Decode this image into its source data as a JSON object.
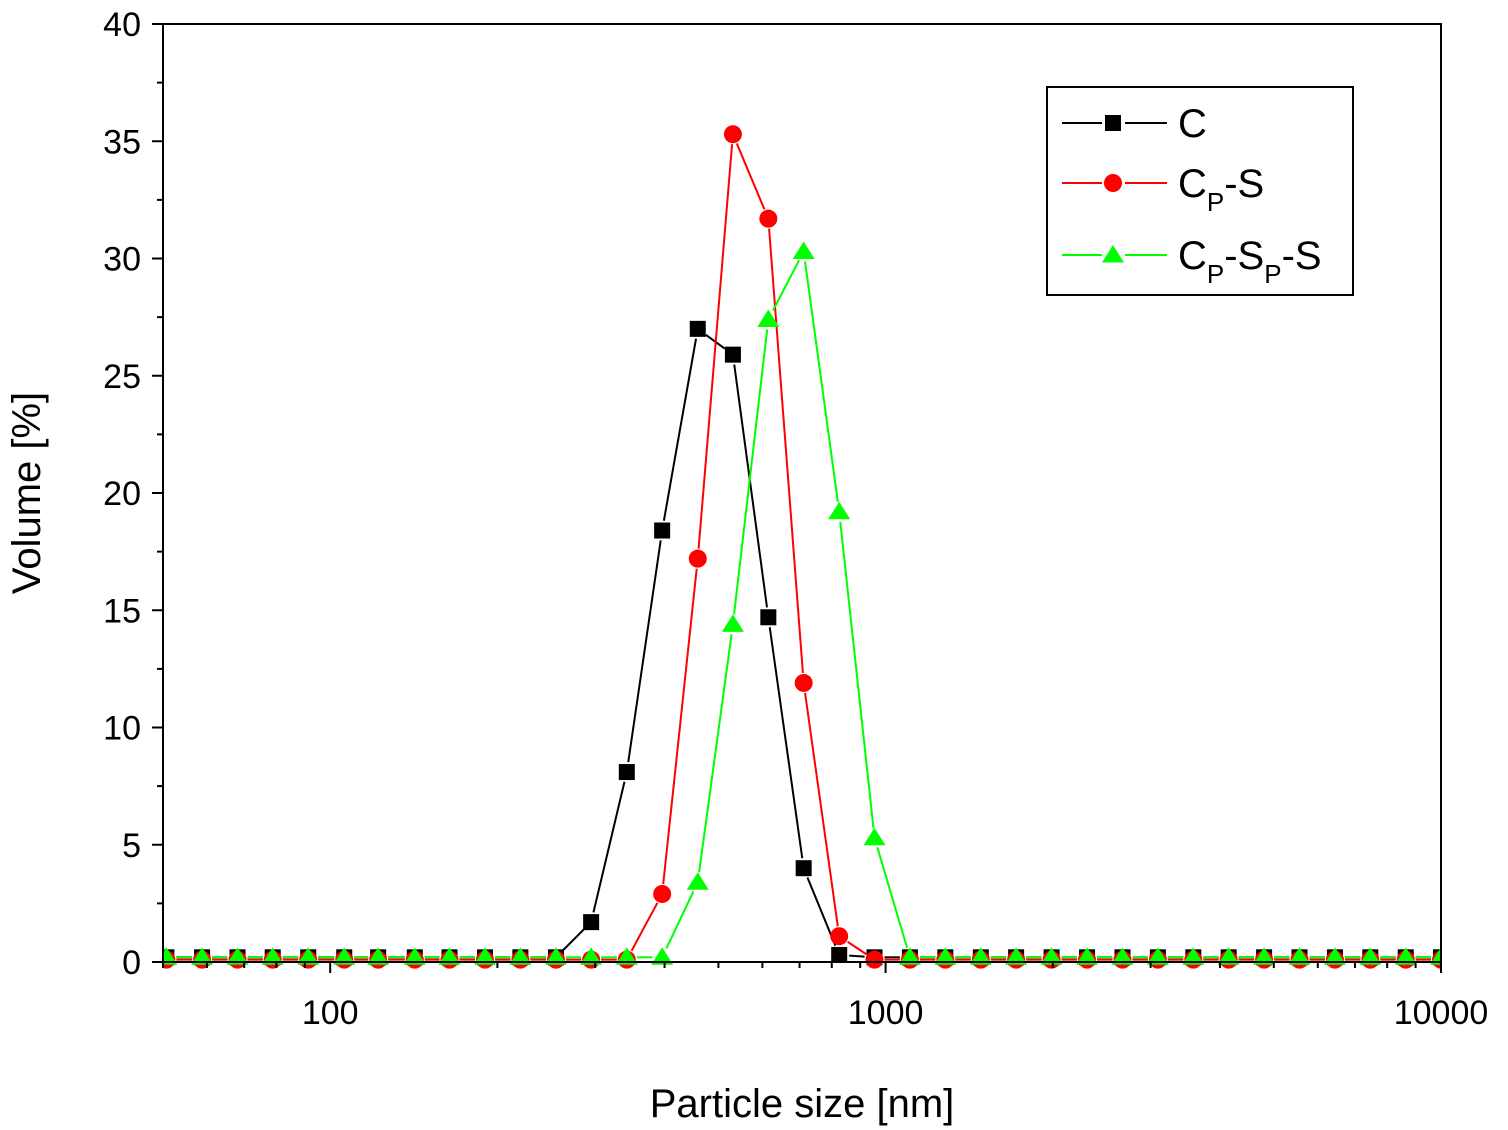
{
  "chart_data": {
    "type": "line",
    "title": "",
    "xlabel": "Particle size [nm]",
    "ylabel": "Volume [%]",
    "x_scale": "log",
    "xlim": [
      50,
      10000
    ],
    "ylim": [
      0,
      40
    ],
    "x_ticks": [
      100,
      1000,
      10000
    ],
    "x_tick_labels": [
      "100",
      "1000",
      "10000"
    ],
    "y_ticks": [
      0,
      5,
      10,
      15,
      20,
      25,
      30,
      35,
      40
    ],
    "y_tick_labels": [
      "0",
      "5",
      "10",
      "15",
      "20",
      "25",
      "30",
      "35",
      "40"
    ],
    "grid": false,
    "legend_position": "top-right",
    "x": [
      50.7,
      58.8,
      68.1,
      78.8,
      91.3,
      106,
      122,
      142,
      164,
      190,
      220,
      255,
      295,
      342,
      396,
      459,
      531,
      615,
      712,
      825,
      955,
      1106,
      1281,
      1484,
      1718,
      1990,
      2305,
      2670,
      3092,
      3581,
      4147,
      4803,
      5562,
      6442,
      7460,
      8640,
      10000
    ],
    "series": [
      {
        "name": "C",
        "label_main": "C",
        "label_sub": "",
        "label_parts": [
          {
            "text": "C",
            "sub": false
          }
        ],
        "color": "#000000",
        "marker": "square",
        "values": [
          0.2,
          0.2,
          0.2,
          0.2,
          0.2,
          0.2,
          0.2,
          0.2,
          0.2,
          0.2,
          0.2,
          0.2,
          1.7,
          8.1,
          18.4,
          27.0,
          25.9,
          14.7,
          4.0,
          0.3,
          0.2,
          0.2,
          0.2,
          0.2,
          0.2,
          0.2,
          0.2,
          0.2,
          0.2,
          0.2,
          0.2,
          0.2,
          0.2,
          0.2,
          0.2,
          0.2,
          0.2
        ]
      },
      {
        "name": "CP-S",
        "label_parts": [
          {
            "text": "C",
            "sub": false
          },
          {
            "text": "P",
            "sub": true
          },
          {
            "text": "-S",
            "sub": false
          }
        ],
        "color": "#ff0000",
        "marker": "circle",
        "values": [
          0.1,
          0.1,
          0.1,
          0.1,
          0.1,
          0.1,
          0.1,
          0.1,
          0.1,
          0.1,
          0.1,
          0.1,
          0.1,
          0.1,
          2.9,
          17.2,
          35.3,
          31.7,
          11.9,
          1.1,
          0.1,
          0.1,
          0.1,
          0.1,
          0.1,
          0.1,
          0.1,
          0.1,
          0.1,
          0.1,
          0.1,
          0.1,
          0.1,
          0.1,
          0.1,
          0.1,
          0.1
        ]
      },
      {
        "name": "CP-SP-S",
        "label_parts": [
          {
            "text": "C",
            "sub": false
          },
          {
            "text": "P",
            "sub": true
          },
          {
            "text": "-S",
            "sub": false
          },
          {
            "text": "P",
            "sub": true
          },
          {
            "text": "-S",
            "sub": false
          }
        ],
        "color": "#00ff00",
        "marker": "triangle",
        "values": [
          0.2,
          0.2,
          0.2,
          0.2,
          0.2,
          0.2,
          0.2,
          0.2,
          0.2,
          0.2,
          0.2,
          0.2,
          0.2,
          0.2,
          0.2,
          3.4,
          14.4,
          27.4,
          30.3,
          19.2,
          5.3,
          0.2,
          0.2,
          0.2,
          0.2,
          0.2,
          0.2,
          0.2,
          0.2,
          0.2,
          0.2,
          0.2,
          0.2,
          0.2,
          0.2,
          0.2,
          0.2
        ]
      }
    ]
  }
}
